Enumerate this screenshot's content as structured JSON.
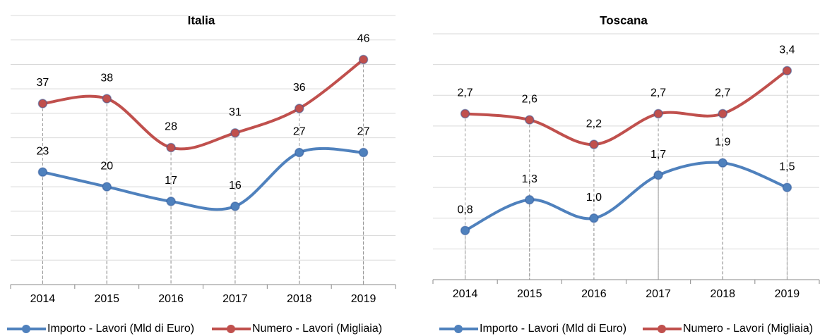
{
  "chart_data": [
    {
      "type": "line",
      "title": "Italia",
      "categories": [
        "2014",
        "2015",
        "2016",
        "2017",
        "2018",
        "2019"
      ],
      "series": [
        {
          "name": "Importo - Lavori (Mld di Euro)",
          "color": "#4f81bd",
          "values": [
            23,
            20,
            17,
            16,
            27,
            27
          ]
        },
        {
          "name": "Numero - Lavori (Migliaia)",
          "color": "#c0504d",
          "values": [
            37,
            38,
            28,
            31,
            36,
            46
          ]
        }
      ],
      "ylim": [
        0,
        55
      ],
      "yticks": [
        0,
        5,
        10,
        15,
        20,
        25,
        30,
        35,
        40,
        45,
        50,
        55
      ],
      "grid": true,
      "legend": "bottom"
    },
    {
      "type": "line",
      "title": "Toscana",
      "categories": [
        "2014",
        "2015",
        "2016",
        "2017",
        "2018",
        "2019"
      ],
      "series": [
        {
          "name": "Importo - Lavori (Mld di Euro)",
          "color": "#4f81bd",
          "values": [
            0.8,
            1.3,
            1.0,
            1.7,
            1.9,
            1.5
          ],
          "value_labels": [
            "0,8",
            "1,3",
            "1,0",
            "1,7",
            "1,9",
            "1,5"
          ]
        },
        {
          "name": "Numero - Lavori (Migliaia)",
          "color": "#c0504d",
          "values": [
            2.7,
            2.6,
            2.2,
            2.7,
            2.7,
            3.4
          ],
          "value_labels": [
            "2,7",
            "2,6",
            "2,2",
            "2,7",
            "2,7",
            "3,4"
          ]
        }
      ],
      "ylim": [
        0,
        4
      ],
      "yticks": [
        0,
        0.5,
        1,
        1.5,
        2,
        2.5,
        3,
        3.5,
        4
      ],
      "grid": true,
      "legend": "bottom"
    }
  ]
}
